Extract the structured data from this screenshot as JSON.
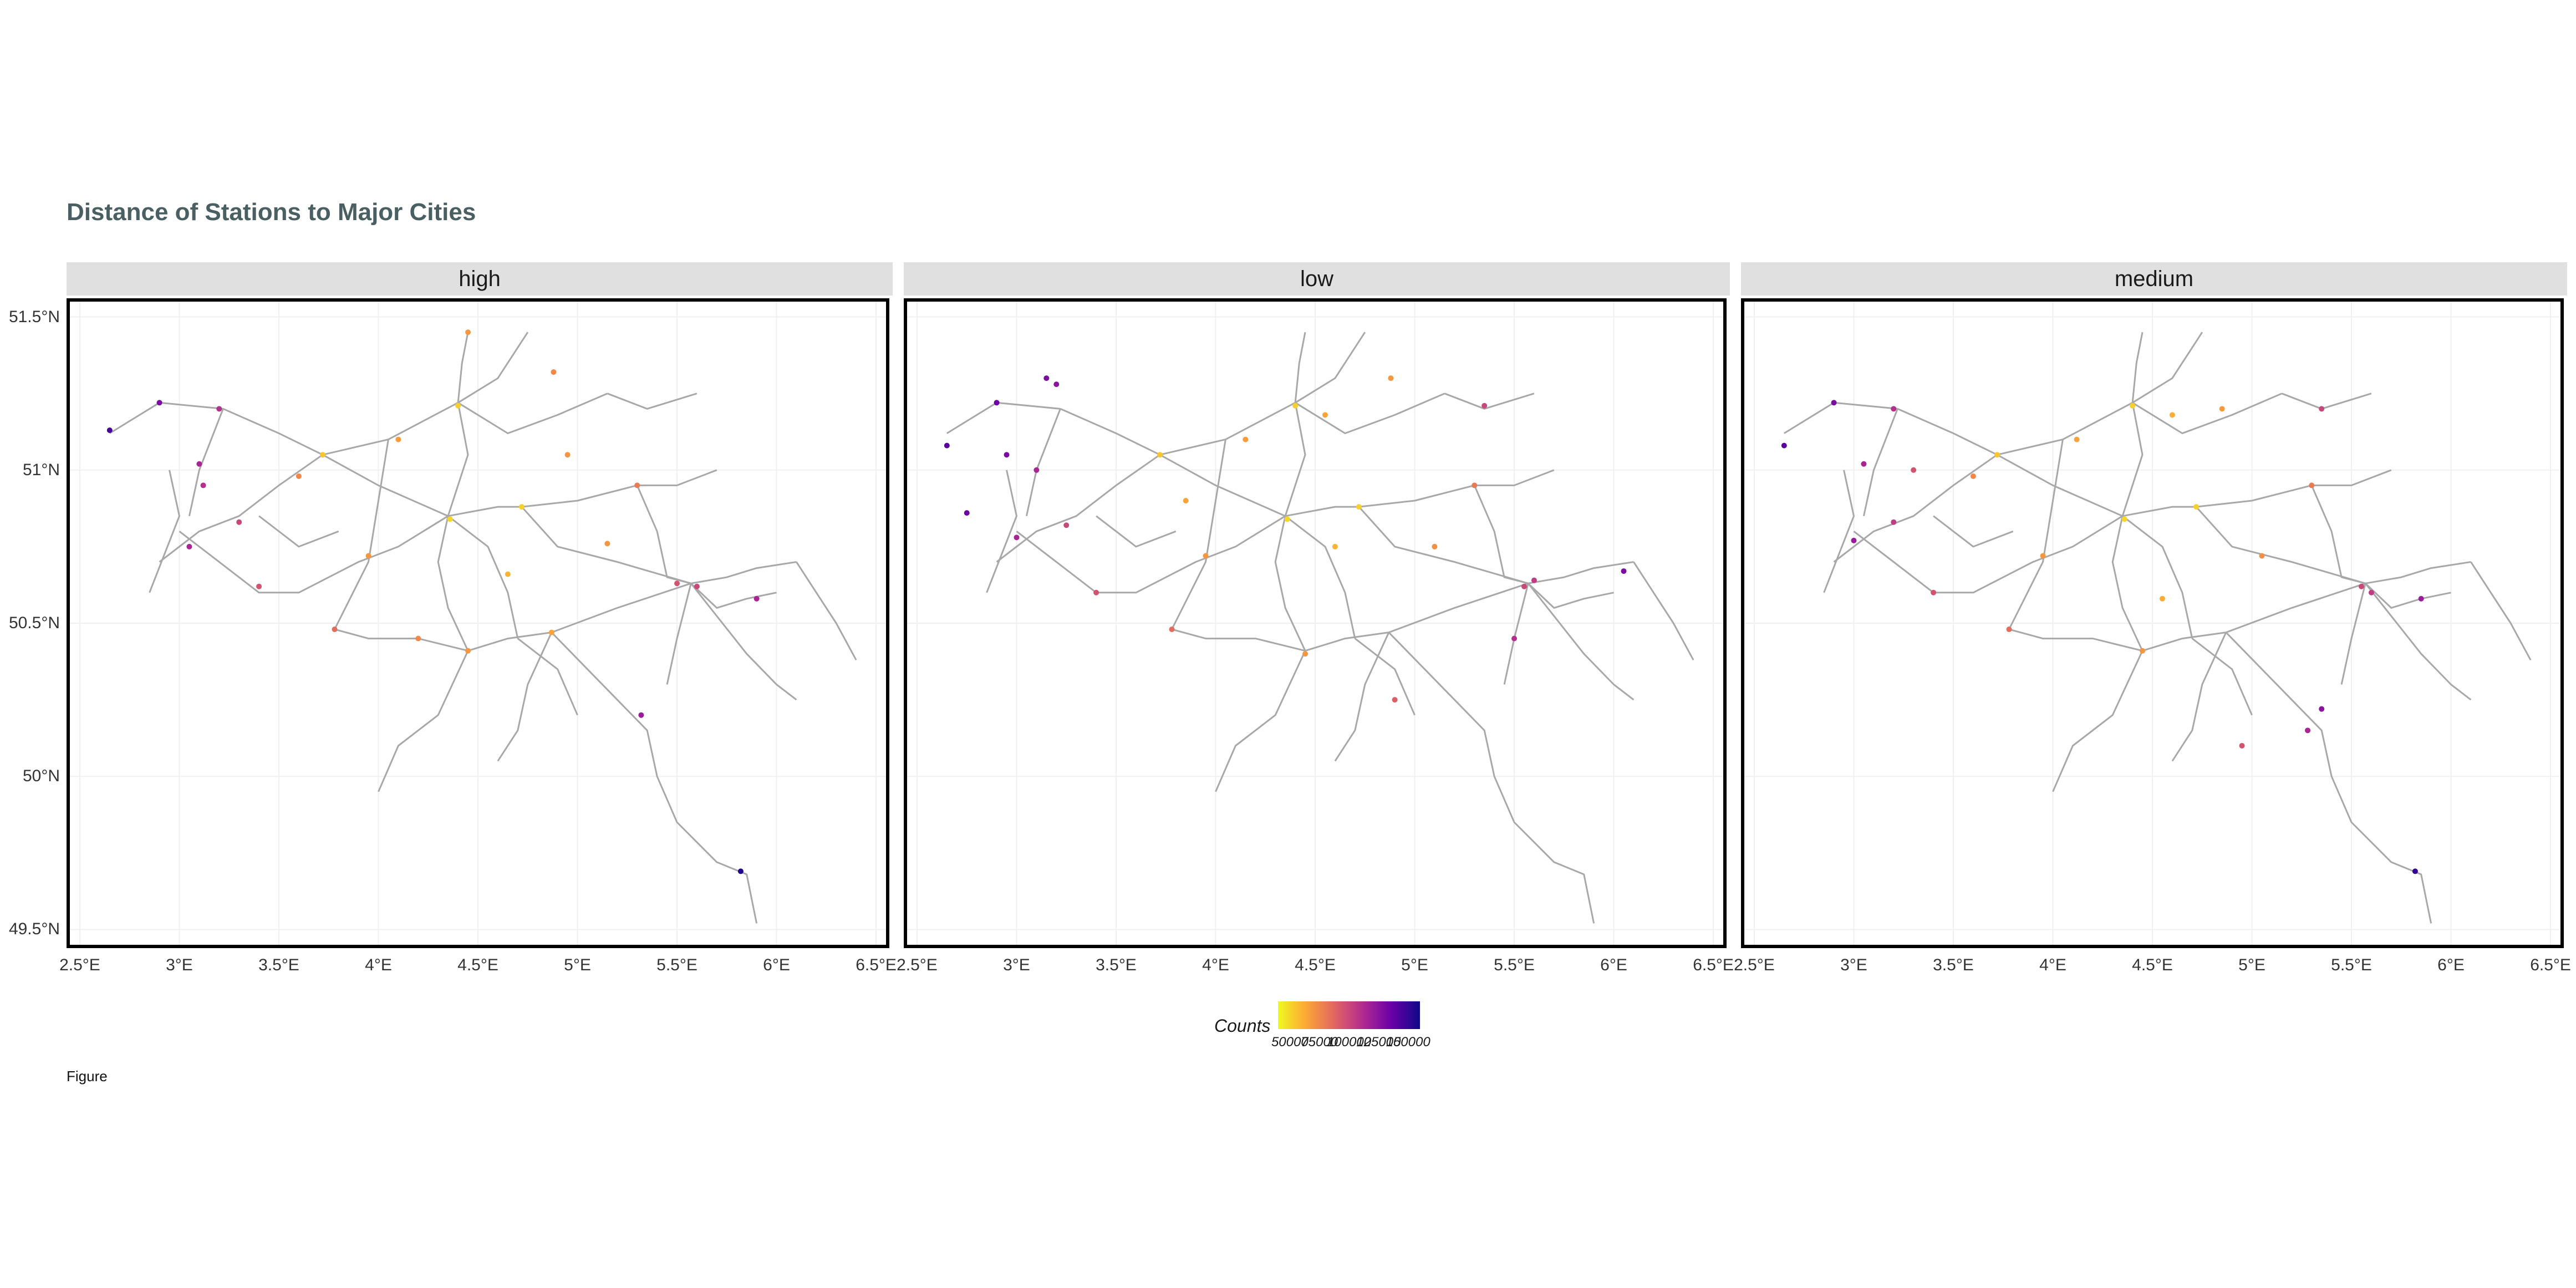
{
  "title": "Distance of Stations to Major Cities",
  "caption": "Figure",
  "facets": [
    {
      "label": "high"
    },
    {
      "label": "low"
    },
    {
      "label": "medium"
    }
  ],
  "axes": {
    "lon_range": [
      2.45,
      6.55
    ],
    "lat_range": [
      49.45,
      51.55
    ],
    "x_ticks": [
      "2.5°E",
      "3°E",
      "3.5°E",
      "4°E",
      "4.5°E",
      "5°E",
      "5.5°E",
      "6°E",
      "6.5°E"
    ],
    "x_tick_values": [
      2.5,
      3.0,
      3.5,
      4.0,
      4.5,
      5.0,
      5.5,
      6.0,
      6.5
    ],
    "y_ticks": [
      "51.5°N",
      "51°N",
      "50.5°N",
      "50°N",
      "49.5°N"
    ],
    "y_tick_values": [
      51.5,
      51.0,
      50.5,
      50.0,
      49.5
    ]
  },
  "legend": {
    "title": "Counts",
    "ticks": [
      "50000",
      "75000",
      "100000",
      "125000",
      "150000"
    ],
    "tick_values": [
      50000,
      75000,
      100000,
      125000,
      150000
    ],
    "range": [
      40000,
      160000
    ]
  },
  "colors": {
    "rail": "#a8a8a8",
    "grid": "#f0f0f0",
    "scale": [
      "#f0f921",
      "#fca636",
      "#e16462",
      "#b12a90",
      "#6a00a8",
      "#0d0887"
    ]
  },
  "rail_lines": [
    [
      [
        2.65,
        51.12
      ],
      [
        2.9,
        51.22
      ],
      [
        3.22,
        51.2
      ]
    ],
    [
      [
        3.22,
        51.2
      ],
      [
        3.5,
        51.12
      ],
      [
        3.72,
        51.05
      ]
    ],
    [
      [
        3.72,
        51.05
      ],
      [
        4.05,
        51.1
      ],
      [
        4.4,
        51.22
      ]
    ],
    [
      [
        4.4,
        51.22
      ],
      [
        4.42,
        51.35
      ],
      [
        4.45,
        51.45
      ]
    ],
    [
      [
        4.4,
        51.22
      ],
      [
        4.6,
        51.3
      ],
      [
        4.75,
        51.45
      ]
    ],
    [
      [
        4.4,
        51.22
      ],
      [
        4.65,
        51.12
      ],
      [
        4.9,
        51.18
      ],
      [
        5.15,
        51.25
      ]
    ],
    [
      [
        5.15,
        51.25
      ],
      [
        5.35,
        51.2
      ],
      [
        5.6,
        51.25
      ]
    ],
    [
      [
        4.4,
        51.22
      ],
      [
        4.45,
        51.05
      ],
      [
        4.35,
        50.85
      ]
    ],
    [
      [
        3.72,
        51.05
      ],
      [
        4.0,
        50.95
      ],
      [
        4.35,
        50.85
      ]
    ],
    [
      [
        4.35,
        50.85
      ],
      [
        4.6,
        50.88
      ],
      [
        4.72,
        50.88
      ],
      [
        5.0,
        50.9
      ],
      [
        5.3,
        50.95
      ]
    ],
    [
      [
        5.3,
        50.95
      ],
      [
        5.5,
        50.95
      ],
      [
        5.7,
        51.0
      ]
    ],
    [
      [
        4.72,
        50.88
      ],
      [
        4.9,
        50.75
      ],
      [
        5.2,
        50.7
      ],
      [
        5.57,
        50.63
      ]
    ],
    [
      [
        5.57,
        50.63
      ],
      [
        5.75,
        50.65
      ],
      [
        5.9,
        50.68
      ],
      [
        6.1,
        50.7
      ]
    ],
    [
      [
        5.57,
        50.63
      ],
      [
        5.7,
        50.55
      ],
      [
        5.85,
        50.58
      ],
      [
        6.0,
        50.6
      ]
    ],
    [
      [
        4.35,
        50.85
      ],
      [
        4.3,
        50.7
      ],
      [
        4.35,
        50.55
      ],
      [
        4.45,
        50.41
      ]
    ],
    [
      [
        4.45,
        50.41
      ],
      [
        4.2,
        50.45
      ],
      [
        3.95,
        50.45
      ],
      [
        3.78,
        50.48
      ]
    ],
    [
      [
        4.45,
        50.41
      ],
      [
        4.65,
        50.45
      ],
      [
        4.87,
        50.47
      ],
      [
        5.2,
        50.55
      ],
      [
        5.57,
        50.63
      ]
    ],
    [
      [
        4.87,
        50.47
      ],
      [
        5.05,
        50.35
      ],
      [
        5.2,
        50.25
      ],
      [
        5.35,
        50.15
      ],
      [
        5.4,
        50.0
      ],
      [
        5.5,
        49.85
      ],
      [
        5.7,
        49.72
      ],
      [
        5.85,
        49.68
      ],
      [
        5.9,
        49.52
      ]
    ],
    [
      [
        4.87,
        50.47
      ],
      [
        4.75,
        50.3
      ],
      [
        4.7,
        50.15
      ],
      [
        4.6,
        50.05
      ]
    ],
    [
      [
        4.35,
        50.85
      ],
      [
        4.1,
        50.75
      ],
      [
        3.9,
        50.7
      ],
      [
        3.6,
        50.6
      ],
      [
        3.4,
        50.6
      ],
      [
        3.2,
        50.7
      ],
      [
        3.0,
        50.8
      ]
    ],
    [
      [
        3.72,
        51.05
      ],
      [
        3.5,
        50.95
      ],
      [
        3.3,
        50.85
      ],
      [
        3.1,
        50.8
      ],
      [
        2.9,
        50.7
      ]
    ],
    [
      [
        3.22,
        51.2
      ],
      [
        3.1,
        51.0
      ],
      [
        3.05,
        50.85
      ]
    ],
    [
      [
        4.05,
        51.1
      ],
      [
        4.0,
        50.9
      ],
      [
        3.95,
        50.7
      ],
      [
        3.78,
        50.48
      ]
    ],
    [
      [
        4.35,
        50.85
      ],
      [
        4.55,
        50.75
      ],
      [
        4.65,
        50.6
      ],
      [
        4.7,
        50.45
      ]
    ],
    [
      [
        5.3,
        50.95
      ],
      [
        5.4,
        50.8
      ],
      [
        5.45,
        50.65
      ],
      [
        5.57,
        50.63
      ]
    ],
    [
      [
        5.57,
        50.63
      ],
      [
        5.5,
        50.45
      ],
      [
        5.45,
        50.3
      ]
    ],
    [
      [
        6.1,
        50.7
      ],
      [
        6.2,
        50.6
      ],
      [
        6.3,
        50.5
      ],
      [
        6.4,
        50.38
      ]
    ],
    [
      [
        5.57,
        50.63
      ],
      [
        5.85,
        50.4
      ],
      [
        6.0,
        50.3
      ],
      [
        6.1,
        50.25
      ]
    ],
    [
      [
        2.95,
        51.0
      ],
      [
        3.0,
        50.85
      ],
      [
        2.85,
        50.6
      ]
    ],
    [
      [
        4.45,
        50.41
      ],
      [
        4.3,
        50.2
      ],
      [
        4.1,
        50.1
      ],
      [
        4.0,
        49.95
      ]
    ],
    [
      [
        3.8,
        50.8
      ],
      [
        3.6,
        50.75
      ],
      [
        3.4,
        50.85
      ]
    ],
    [
      [
        4.7,
        50.45
      ],
      [
        4.9,
        50.35
      ],
      [
        5.0,
        50.2
      ]
    ]
  ],
  "panels": [
    {
      "name": "high",
      "stations": [
        {
          "lon": 4.4,
          "lat": 51.21,
          "value": 52000
        },
        {
          "lon": 4.36,
          "lat": 50.84,
          "value": 50000
        },
        {
          "lon": 4.72,
          "lat": 50.88,
          "value": 52000
        },
        {
          "lon": 3.72,
          "lat": 51.05,
          "value": 55000
        },
        {
          "lon": 4.45,
          "lat": 51.45,
          "value": 70000
        },
        {
          "lon": 4.88,
          "lat": 51.32,
          "value": 75000
        },
        {
          "lon": 2.65,
          "lat": 51.13,
          "value": 145000
        },
        {
          "lon": 2.9,
          "lat": 51.22,
          "value": 130000
        },
        {
          "lon": 3.2,
          "lat": 51.2,
          "value": 110000
        },
        {
          "lon": 3.1,
          "lat": 51.02,
          "value": 115000
        },
        {
          "lon": 3.12,
          "lat": 50.95,
          "value": 110000
        },
        {
          "lon": 3.05,
          "lat": 50.75,
          "value": 115000
        },
        {
          "lon": 3.3,
          "lat": 50.83,
          "value": 100000
        },
        {
          "lon": 3.4,
          "lat": 50.62,
          "value": 95000
        },
        {
          "lon": 3.78,
          "lat": 50.48,
          "value": 85000
        },
        {
          "lon": 4.2,
          "lat": 50.45,
          "value": 75000
        },
        {
          "lon": 4.45,
          "lat": 50.41,
          "value": 70000
        },
        {
          "lon": 4.87,
          "lat": 50.47,
          "value": 65000
        },
        {
          "lon": 5.5,
          "lat": 50.63,
          "value": 95000
        },
        {
          "lon": 5.6,
          "lat": 50.62,
          "value": 100000
        },
        {
          "lon": 5.9,
          "lat": 50.58,
          "value": 115000
        },
        {
          "lon": 5.32,
          "lat": 50.2,
          "value": 120000
        },
        {
          "lon": 5.82,
          "lat": 49.69,
          "value": 155000
        },
        {
          "lon": 5.3,
          "lat": 50.95,
          "value": 80000
        },
        {
          "lon": 4.95,
          "lat": 51.05,
          "value": 70000
        },
        {
          "lon": 3.95,
          "lat": 50.72,
          "value": 70000
        },
        {
          "lon": 3.6,
          "lat": 50.98,
          "value": 75000
        },
        {
          "lon": 4.1,
          "lat": 51.1,
          "value": 68000
        },
        {
          "lon": 4.65,
          "lat": 50.66,
          "value": 60000
        },
        {
          "lon": 5.15,
          "lat": 50.76,
          "value": 70000
        }
      ]
    },
    {
      "name": "low",
      "stations": [
        {
          "lon": 4.4,
          "lat": 51.21,
          "value": 52000
        },
        {
          "lon": 4.36,
          "lat": 50.84,
          "value": 50000
        },
        {
          "lon": 4.72,
          "lat": 50.88,
          "value": 52000
        },
        {
          "lon": 3.72,
          "lat": 51.05,
          "value": 55000
        },
        {
          "lon": 4.88,
          "lat": 51.3,
          "value": 70000
        },
        {
          "lon": 4.55,
          "lat": 51.18,
          "value": 65000
        },
        {
          "lon": 2.65,
          "lat": 51.08,
          "value": 140000
        },
        {
          "lon": 2.9,
          "lat": 51.22,
          "value": 135000
        },
        {
          "lon": 3.15,
          "lat": 51.3,
          "value": 130000
        },
        {
          "lon": 3.2,
          "lat": 51.28,
          "value": 125000
        },
        {
          "lon": 2.95,
          "lat": 51.05,
          "value": 130000
        },
        {
          "lon": 2.75,
          "lat": 50.86,
          "value": 135000
        },
        {
          "lon": 3.1,
          "lat": 51.0,
          "value": 115000
        },
        {
          "lon": 3.0,
          "lat": 50.78,
          "value": 115000
        },
        {
          "lon": 3.25,
          "lat": 50.82,
          "value": 100000
        },
        {
          "lon": 3.4,
          "lat": 50.6,
          "value": 95000
        },
        {
          "lon": 3.78,
          "lat": 50.48,
          "value": 85000
        },
        {
          "lon": 4.45,
          "lat": 50.4,
          "value": 70000
        },
        {
          "lon": 4.9,
          "lat": 50.25,
          "value": 90000
        },
        {
          "lon": 5.55,
          "lat": 50.62,
          "value": 100000
        },
        {
          "lon": 5.6,
          "lat": 50.64,
          "value": 105000
        },
        {
          "lon": 6.05,
          "lat": 50.67,
          "value": 130000
        },
        {
          "lon": 5.5,
          "lat": 50.45,
          "value": 110000
        },
        {
          "lon": 5.35,
          "lat": 51.21,
          "value": 100000
        },
        {
          "lon": 5.3,
          "lat": 50.95,
          "value": 80000
        },
        {
          "lon": 4.6,
          "lat": 50.75,
          "value": 60000
        },
        {
          "lon": 3.95,
          "lat": 50.72,
          "value": 70000
        },
        {
          "lon": 4.15,
          "lat": 51.1,
          "value": 68000
        },
        {
          "lon": 5.1,
          "lat": 50.75,
          "value": 72000
        },
        {
          "lon": 3.85,
          "lat": 50.9,
          "value": 65000
        }
      ]
    },
    {
      "name": "medium",
      "stations": [
        {
          "lon": 4.4,
          "lat": 51.21,
          "value": 52000
        },
        {
          "lon": 4.36,
          "lat": 50.84,
          "value": 50000
        },
        {
          "lon": 4.72,
          "lat": 50.88,
          "value": 52000
        },
        {
          "lon": 3.72,
          "lat": 51.05,
          "value": 55000
        },
        {
          "lon": 4.6,
          "lat": 51.18,
          "value": 62000
        },
        {
          "lon": 4.85,
          "lat": 51.2,
          "value": 68000
        },
        {
          "lon": 2.65,
          "lat": 51.08,
          "value": 140000
        },
        {
          "lon": 2.9,
          "lat": 51.22,
          "value": 130000
        },
        {
          "lon": 3.2,
          "lat": 51.2,
          "value": 110000
        },
        {
          "lon": 3.05,
          "lat": 51.02,
          "value": 115000
        },
        {
          "lon": 3.0,
          "lat": 50.77,
          "value": 120000
        },
        {
          "lon": 3.2,
          "lat": 50.83,
          "value": 105000
        },
        {
          "lon": 3.4,
          "lat": 50.6,
          "value": 95000
        },
        {
          "lon": 3.78,
          "lat": 50.48,
          "value": 85000
        },
        {
          "lon": 4.45,
          "lat": 50.41,
          "value": 70000
        },
        {
          "lon": 5.35,
          "lat": 51.2,
          "value": 100000
        },
        {
          "lon": 5.55,
          "lat": 50.62,
          "value": 100000
        },
        {
          "lon": 5.6,
          "lat": 50.6,
          "value": 105000
        },
        {
          "lon": 5.85,
          "lat": 50.58,
          "value": 120000
        },
        {
          "lon": 5.35,
          "lat": 50.22,
          "value": 125000
        },
        {
          "lon": 5.28,
          "lat": 50.15,
          "value": 115000
        },
        {
          "lon": 4.95,
          "lat": 50.1,
          "value": 95000
        },
        {
          "lon": 5.82,
          "lat": 49.69,
          "value": 150000
        },
        {
          "lon": 5.3,
          "lat": 50.95,
          "value": 80000
        },
        {
          "lon": 4.55,
          "lat": 50.58,
          "value": 62000
        },
        {
          "lon": 3.95,
          "lat": 50.72,
          "value": 70000
        },
        {
          "lon": 3.6,
          "lat": 50.98,
          "value": 75000
        },
        {
          "lon": 5.05,
          "lat": 50.72,
          "value": 72000
        },
        {
          "lon": 3.3,
          "lat": 51.0,
          "value": 95000
        },
        {
          "lon": 4.12,
          "lat": 51.1,
          "value": 66000
        }
      ]
    }
  ]
}
